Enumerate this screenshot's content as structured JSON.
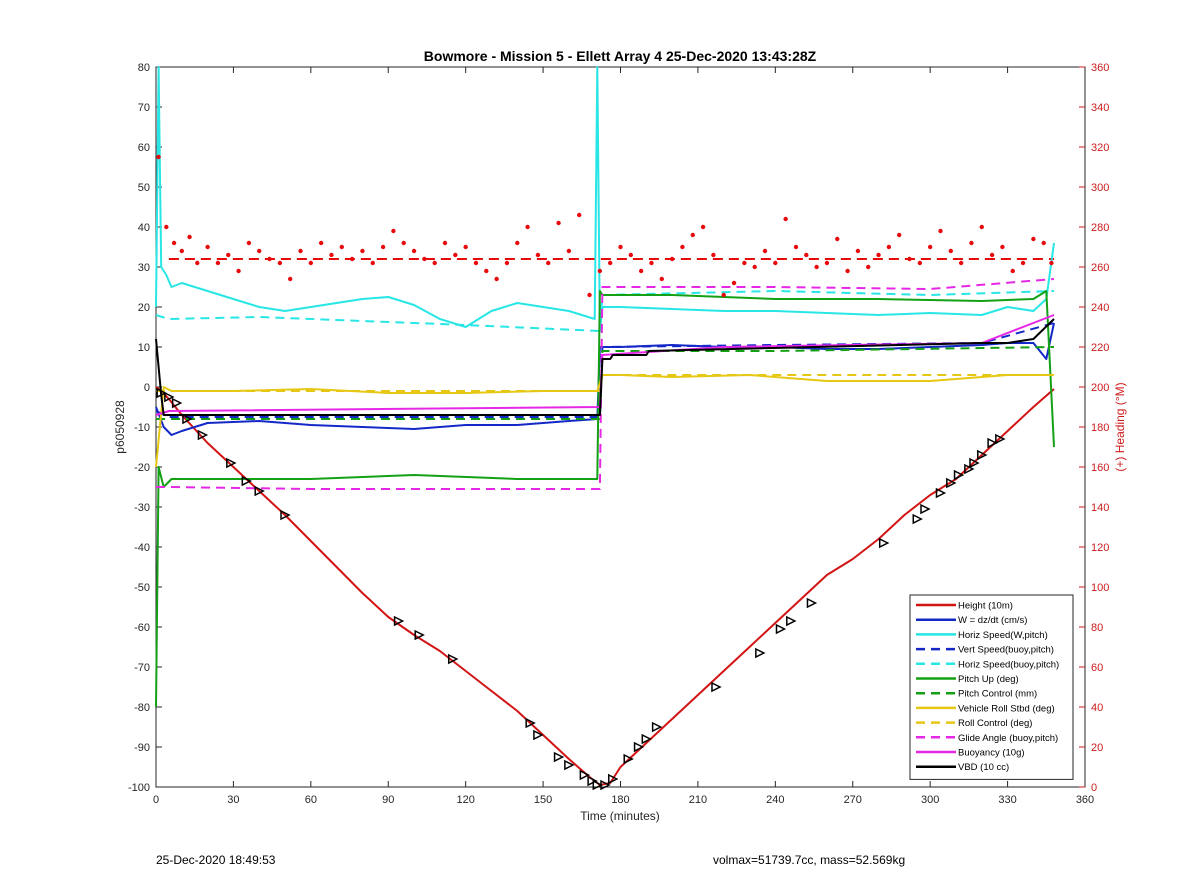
{
  "chart_data": {
    "type": "line",
    "title": "Bowmore - Mission 5 - Ellett Array 4 25-Dec-2020 13:43:28Z",
    "xlabel": "Time (minutes)",
    "ylabel": "p6050928",
    "ylabel_right": "(+) Heading (°M)",
    "xlim": [
      0,
      360
    ],
    "ylim": [
      -100,
      80
    ],
    "ylim_right": [
      0,
      360
    ],
    "xticks": [
      0,
      30,
      60,
      90,
      120,
      150,
      180,
      210,
      240,
      270,
      300,
      330,
      360
    ],
    "yticks": [
      -100,
      -90,
      -80,
      -70,
      -60,
      -50,
      -40,
      -30,
      -20,
      -10,
      0,
      10,
      20,
      30,
      40,
      50,
      60,
      70,
      80
    ],
    "yticks_right": [
      0,
      20,
      40,
      60,
      80,
      100,
      120,
      140,
      160,
      180,
      200,
      220,
      240,
      260,
      280,
      300,
      320,
      340,
      360
    ],
    "grid": false,
    "legend_position": "bottom-right",
    "series": [
      {
        "name": "Height (10m)",
        "color": "#d21414",
        "style": "solid",
        "x": [
          0,
          2,
          5,
          10,
          20,
          30,
          40,
          50,
          60,
          70,
          80,
          90,
          100,
          110,
          120,
          130,
          140,
          150,
          160,
          168,
          172,
          176,
          180,
          190,
          200,
          210,
          220,
          230,
          240,
          250,
          260,
          270,
          280,
          290,
          300,
          310,
          320,
          330,
          340,
          348
        ],
        "y": [
          0,
          -1,
          -3,
          -7,
          -14,
          -20,
          -26,
          -32,
          -38.5,
          -45,
          -51.5,
          -57.5,
          -62,
          -66,
          -71,
          -76,
          -81,
          -87,
          -93,
          -97.5,
          -99.5,
          -99,
          -95,
          -89,
          -83,
          -77,
          -71,
          -65,
          -59,
          -53,
          -47,
          -43,
          -38,
          -32,
          -27,
          -23,
          -17,
          -11,
          -5,
          -0.5
        ]
      },
      {
        "name": "W = dz/dt (cm/s)",
        "color": "#1428c8",
        "style": "solid",
        "x": [
          0,
          3,
          6,
          10,
          20,
          40,
          60,
          80,
          100,
          120,
          140,
          160,
          171,
          172,
          180,
          200,
          220,
          240,
          260,
          280,
          300,
          320,
          330,
          340,
          345,
          348
        ],
        "y": [
          -5,
          -10,
          -12,
          -11,
          -9,
          -8.5,
          -9.5,
          -10,
          -10.5,
          -9.5,
          -9.5,
          -8.5,
          -8,
          10,
          10,
          10.5,
          10,
          10,
          9.5,
          9.5,
          10,
          10.5,
          11,
          11,
          7,
          16
        ]
      },
      {
        "name": "Horiz Speed(W,pitch)",
        "color": "#28e6e6",
        "style": "solid",
        "x": [
          0,
          1,
          2,
          4,
          6,
          10,
          20,
          30,
          40,
          50,
          60,
          70,
          80,
          90,
          100,
          110,
          120,
          130,
          140,
          150,
          160,
          170,
          171,
          172,
          173,
          180,
          200,
          220,
          240,
          260,
          280,
          300,
          320,
          330,
          340,
          345,
          348
        ],
        "y": [
          20,
          80,
          30,
          28,
          25,
          26,
          24,
          22,
          20,
          19,
          20,
          21,
          22,
          22.5,
          20.5,
          17,
          15,
          19,
          21,
          20,
          19,
          17,
          80,
          14,
          20,
          20,
          19.5,
          19,
          19,
          18.5,
          18,
          18.5,
          18,
          20,
          19,
          22,
          36
        ]
      },
      {
        "name": "Vert Speed(buoy,pitch)",
        "color": "#1428c8",
        "style": "dashed",
        "x": [
          0,
          5,
          172,
          173,
          240,
          320,
          348
        ],
        "y": [
          -6,
          -7.5,
          -7.5,
          10,
          10.5,
          11,
          16
        ]
      },
      {
        "name": "Horiz Speed(buoy,pitch)",
        "color": "#28e6e6",
        "style": "dashed",
        "x": [
          0,
          5,
          40,
          80,
          120,
          172,
          173,
          240,
          300,
          348
        ],
        "y": [
          18,
          17,
          17.5,
          16.5,
          15.5,
          14,
          23,
          24,
          23,
          24
        ]
      },
      {
        "name": "Pitch Up (deg)",
        "color": "#14a014",
        "style": "solid",
        "x": [
          0,
          1,
          3,
          6,
          20,
          60,
          100,
          140,
          171,
          172,
          173,
          200,
          240,
          280,
          320,
          340,
          345,
          348
        ],
        "y": [
          -80,
          -20,
          -25,
          -23,
          -23,
          -23,
          -22,
          -23,
          -23,
          24,
          23,
          23,
          22,
          22,
          21.5,
          22,
          24,
          -15
        ]
      },
      {
        "name": "Pitch Control (mm)",
        "color": "#14a014",
        "style": "dashed",
        "x": [
          0,
          5,
          172,
          173,
          240,
          348
        ],
        "y": [
          -8,
          -8,
          -8,
          9,
          9,
          10
        ]
      },
      {
        "name": "Vehicle Roll Stbd (deg)",
        "color": "#e6c814",
        "style": "solid",
        "x": [
          0,
          3,
          6,
          12,
          30,
          60,
          90,
          120,
          150,
          171,
          173,
          180,
          200,
          230,
          260,
          300,
          330,
          348
        ],
        "y": [
          -20,
          0,
          -1,
          -1,
          -1,
          -0.5,
          -1.5,
          -1.5,
          -1,
          -1,
          3,
          3,
          2.5,
          3,
          1.5,
          1.5,
          3,
          3
        ]
      },
      {
        "name": "Roll Control (deg)",
        "color": "#e6c814",
        "style": "dashed",
        "x": [
          0,
          5,
          172,
          173,
          348
        ],
        "y": [
          -1,
          -1,
          -1,
          3,
          3
        ]
      },
      {
        "name": "Glide Angle (buoy,pitch)",
        "color": "#e628e6",
        "style": "dashed",
        "x": [
          0,
          5,
          60,
          120,
          172,
          173,
          240,
          300,
          348
        ],
        "y": [
          -25,
          -25,
          -25.5,
          -25.5,
          -25.5,
          25,
          25,
          24.5,
          27
        ]
      },
      {
        "name": "Buoyancy (10g)",
        "color": "#e628e6",
        "style": "solid",
        "x": [
          0,
          5,
          172,
          173,
          220,
          320,
          348
        ],
        "y": [
          -7,
          -6,
          -5,
          8,
          10,
          11,
          18
        ]
      },
      {
        "name": "VBD (10 cc)",
        "color": "#000000",
        "style": "solid",
        "x": [
          0,
          2,
          3,
          172,
          173,
          176,
          177,
          190,
          191,
          320,
          330,
          340,
          348
        ],
        "y": [
          12,
          -2,
          -7,
          -7,
          7,
          7,
          8,
          8,
          9,
          11,
          11,
          12,
          17
        ]
      }
    ],
    "heading_dots": {
      "name": "Heading (°M)",
      "color": "#e60a0a",
      "axis": "right",
      "mean_line": 264,
      "mean_line_style": "dashed",
      "x": [
        1,
        4,
        7,
        10,
        13,
        16,
        20,
        24,
        28,
        32,
        36,
        40,
        44,
        48,
        52,
        56,
        60,
        64,
        68,
        72,
        76,
        80,
        84,
        88,
        92,
        96,
        100,
        104,
        108,
        112,
        116,
        120,
        124,
        128,
        132,
        136,
        140,
        144,
        148,
        152,
        156,
        160,
        164,
        168,
        172,
        176,
        180,
        184,
        188,
        192,
        196,
        200,
        204,
        208,
        212,
        216,
        220,
        224,
        228,
        232,
        236,
        240,
        244,
        248,
        252,
        256,
        260,
        264,
        268,
        272,
        276,
        280,
        284,
        288,
        292,
        296,
        300,
        304,
        308,
        312,
        316,
        320,
        324,
        328,
        332,
        336,
        340,
        344,
        347
      ],
      "y": [
        315,
        280,
        272,
        268,
        275,
        262,
        270,
        262,
        266,
        258,
        272,
        268,
        264,
        262,
        254,
        268,
        262,
        272,
        266,
        270,
        264,
        268,
        262,
        270,
        278,
        272,
        268,
        264,
        262,
        272,
        266,
        270,
        262,
        258,
        254,
        262,
        272,
        280,
        266,
        262,
        282,
        268,
        286,
        246,
        258,
        262,
        270,
        266,
        258,
        262,
        254,
        264,
        270,
        276,
        280,
        266,
        246,
        252,
        262,
        260,
        268,
        262,
        284,
        270,
        266,
        260,
        262,
        274,
        258,
        268,
        260,
        266,
        270,
        276,
        264,
        262,
        270,
        278,
        268,
        262,
        272,
        280,
        266,
        270,
        258,
        262,
        274,
        272,
        262
      ]
    },
    "waypoint_markers": {
      "color": "#000000",
      "x": [
        2,
        5,
        8,
        12,
        18,
        29,
        35,
        40,
        50,
        94,
        102,
        115,
        145,
        148,
        156,
        160,
        166,
        169,
        171,
        174,
        177,
        183,
        187,
        190,
        194,
        217,
        234,
        242,
        246,
        254,
        282,
        295,
        298,
        304,
        308,
        311,
        315,
        317,
        320,
        324,
        327
      ],
      "y": [
        -1.5,
        -2.5,
        -4,
        -8,
        -12,
        -19,
        -23.5,
        -26,
        -32,
        -58.5,
        -62,
        -68,
        -84,
        -87,
        -92.5,
        -94.5,
        -97,
        -98.5,
        -99.5,
        -99.5,
        -98,
        -93,
        -90,
        -88,
        -85,
        -75,
        -66.5,
        -60.5,
        -58.5,
        -54,
        -39,
        -33,
        -30.5,
        -26.5,
        -24,
        -22,
        -20.5,
        -19,
        -17,
        -14,
        -13
      ]
    }
  },
  "footer": {
    "left": "25-Dec-2020 18:49:53",
    "right": "volmax=51739.7cc, mass=52.569kg"
  }
}
